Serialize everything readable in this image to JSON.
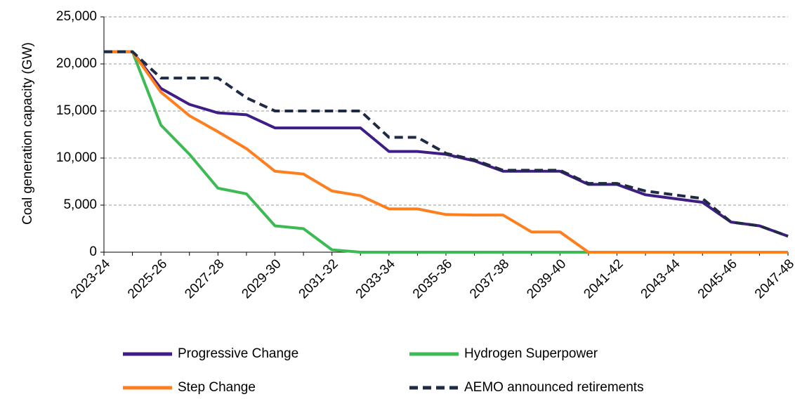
{
  "chart_data": {
    "type": "line",
    "y_label": "Coal generation capacity (GW)",
    "categories": [
      "2023-24",
      null,
      "2025-26",
      null,
      "2027-28",
      null,
      "2029-30",
      null,
      "2031-32",
      null,
      "2033-34",
      null,
      "2035-36",
      null,
      "2037-38",
      null,
      "2039-40",
      null,
      "2041-42",
      null,
      "2043-44",
      null,
      "2045-46",
      null,
      "2047-48"
    ],
    "series": [
      {
        "name": "Progressive Change",
        "color": "#3f1d87",
        "style": "solid",
        "values": [
          21300,
          21300,
          17400,
          15700,
          14800,
          14600,
          13200,
          13200,
          13200,
          13200,
          10700,
          10700,
          10400,
          9700,
          8600,
          8600,
          8600,
          7200,
          7200,
          6100,
          5700,
          5300,
          3200,
          2800,
          1700
        ]
      },
      {
        "name": "Hydrogen Superpower",
        "color": "#3cba54",
        "style": "solid",
        "values": [
          21300,
          21300,
          13500,
          10400,
          6800,
          6200,
          2800,
          2500,
          250,
          0,
          0,
          0,
          0,
          0,
          0,
          0,
          0,
          0,
          0,
          0,
          0,
          0,
          0,
          0,
          0
        ]
      },
      {
        "name": "Step Change",
        "color": "#ff7f1e",
        "style": "solid",
        "values": [
          21300,
          21300,
          17000,
          14500,
          12800,
          11000,
          8600,
          8300,
          6500,
          6000,
          4600,
          4600,
          4000,
          3950,
          3950,
          2150,
          2150,
          0,
          0,
          0,
          0,
          0,
          0,
          0,
          0
        ]
      },
      {
        "name": "AEMO announced retirements",
        "color": "#1f2a44",
        "style": "dashed",
        "values": [
          21300,
          21300,
          18500,
          18500,
          18500,
          16400,
          15000,
          15000,
          15000,
          15000,
          12200,
          12200,
          10500,
          9800,
          8700,
          8700,
          8700,
          7300,
          7300,
          6500,
          6100,
          5700,
          3200,
          2800,
          1700
        ]
      }
    ],
    "ylim": [
      0,
      25000
    ],
    "yticks": [
      0,
      {
        "value": 5000,
        "label": "5,000"
      },
      {
        "value": 10000,
        "label": "10,000"
      },
      {
        "value": 15000,
        "label": "15,000"
      },
      {
        "value": 20000,
        "label": "20,000"
      },
      {
        "value": 25000,
        "label": "25,000"
      }
    ],
    "grid": true,
    "legend": "bottom"
  }
}
